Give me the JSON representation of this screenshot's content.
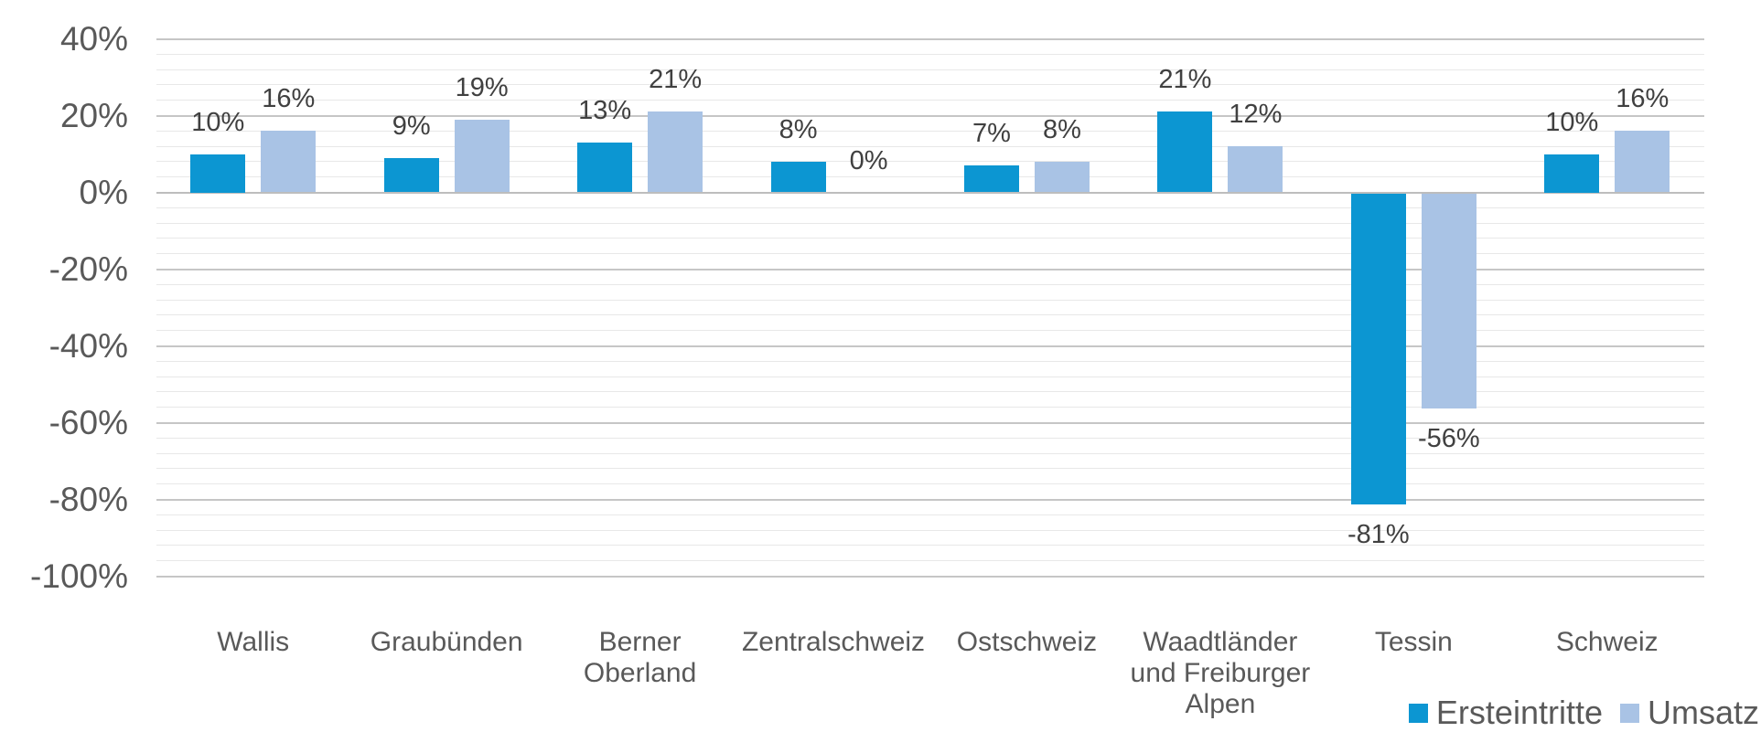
{
  "chart_data": {
    "type": "bar",
    "title": "",
    "categories": [
      "Wallis",
      "Graubünden",
      "Berner Oberland",
      "Zentralschweiz",
      "Ostschweiz",
      "Waadtländer und Freiburger Alpen",
      "Tessin",
      "Schweiz"
    ],
    "category_label_lines": [
      [
        "Wallis"
      ],
      [
        "Graubünden"
      ],
      [
        "Berner",
        "Oberland"
      ],
      [
        "Zentralschweiz"
      ],
      [
        "Ostschweiz"
      ],
      [
        "Waadtländer",
        "und Freiburger",
        "Alpen"
      ],
      [
        "Tessin"
      ],
      [
        "Schweiz"
      ]
    ],
    "series": [
      {
        "name": "Ersteintritte",
        "color": "#0C96D2",
        "values": [
          10,
          9,
          13,
          8,
          7,
          21,
          -81,
          10
        ]
      },
      {
        "name": "Umsatz",
        "color": "#A9C3E5",
        "values": [
          16,
          19,
          21,
          0,
          8,
          12,
          -56,
          16
        ]
      }
    ],
    "data_labels": [
      [
        "10%",
        "9%",
        "13%",
        "8%",
        "7%",
        "21%",
        "-81%",
        "10%"
      ],
      [
        "16%",
        "19%",
        "21%",
        "0%",
        "8%",
        "12%",
        "-56%",
        "16%"
      ]
    ],
    "y_axis": {
      "min": -100,
      "max": 40,
      "major_step": 20,
      "minor_step": 4,
      "tick_labels": [
        "40%",
        "20%",
        "0%",
        "-20%",
        "-40%",
        "-60%",
        "-80%",
        "-100%"
      ],
      "tick_values": [
        40,
        20,
        0,
        -20,
        -40,
        -60,
        -80,
        -100
      ]
    },
    "grid": {
      "major_color": "#C6C6C6",
      "zero_line_color": "#BDBDBD",
      "minor_color": "#E8E8E8",
      "minor_on": true
    },
    "legend": {
      "position": "bottom-right",
      "entries": [
        "Ersteintritte",
        "Umsatz"
      ]
    },
    "text_colors": {
      "axis": "#595959",
      "data_label": "#404040"
    },
    "background": "#FFFFFF"
  }
}
